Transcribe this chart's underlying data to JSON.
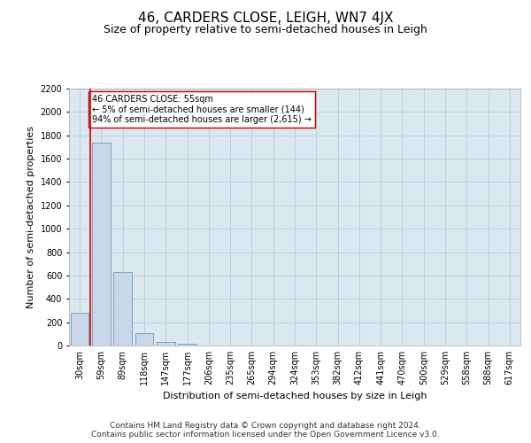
{
  "title": "46, CARDERS CLOSE, LEIGH, WN7 4JX",
  "subtitle": "Size of property relative to semi-detached houses in Leigh",
  "xlabel": "Distribution of semi-detached houses by size in Leigh",
  "ylabel": "Number of semi-detached properties",
  "categories": [
    "30sqm",
    "59sqm",
    "89sqm",
    "118sqm",
    "147sqm",
    "177sqm",
    "206sqm",
    "235sqm",
    "265sqm",
    "294sqm",
    "324sqm",
    "353sqm",
    "382sqm",
    "412sqm",
    "441sqm",
    "470sqm",
    "500sqm",
    "529sqm",
    "558sqm",
    "588sqm",
    "617sqm"
  ],
  "values": [
    280,
    1740,
    630,
    110,
    30,
    15,
    0,
    0,
    0,
    0,
    0,
    0,
    0,
    0,
    0,
    0,
    0,
    0,
    0,
    0,
    0
  ],
  "bar_color": "#c8d8e8",
  "bar_edge_color": "#5a8ab0",
  "property_line_x": 0.5,
  "property_line_color": "#cc0000",
  "annotation_text": "46 CARDERS CLOSE: 55sqm\n← 5% of semi-detached houses are smaller (144)\n94% of semi-detached houses are larger (2,615) →",
  "annotation_box_color": "#ffffff",
  "annotation_box_edge_color": "#cc0000",
  "ylim": [
    0,
    2200
  ],
  "yticks": [
    0,
    200,
    400,
    600,
    800,
    1000,
    1200,
    1400,
    1600,
    1800,
    2000,
    2200
  ],
  "footer_line1": "Contains HM Land Registry data © Crown copyright and database right 2024.",
  "footer_line2": "Contains public sector information licensed under the Open Government Licence v3.0.",
  "background_color": "#ffffff",
  "plot_background": "#dce8f0",
  "grid_color": "#b0c4d8",
  "title_fontsize": 11,
  "subtitle_fontsize": 9,
  "axis_label_fontsize": 8,
  "tick_fontsize": 7,
  "footer_fontsize": 6.5,
  "annotation_fontsize": 7
}
